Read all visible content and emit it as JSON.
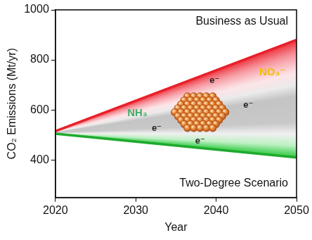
{
  "chart_data": {
    "type": "line",
    "x": [
      2020,
      2050
    ],
    "series": [
      {
        "name": "Business as Usual",
        "color": "#e8202a",
        "values": [
          515,
          880
        ]
      },
      {
        "name": "Two-Degree Scenario",
        "color": "#1faa2e",
        "values": [
          505,
          410
        ]
      }
    ],
    "xlabel": "Year",
    "ylabel": "CO₂ Emissions (Mt/yr)",
    "xlim": [
      2020,
      2050
    ],
    "xticks": [
      2020,
      2030,
      2040,
      2050
    ],
    "ylim": [
      250,
      1000
    ],
    "yticks": [
      400,
      600,
      800,
      1000
    ],
    "grid": false,
    "annotations": [
      "NH₃",
      "NO₃⁻",
      "e⁻"
    ]
  }
}
